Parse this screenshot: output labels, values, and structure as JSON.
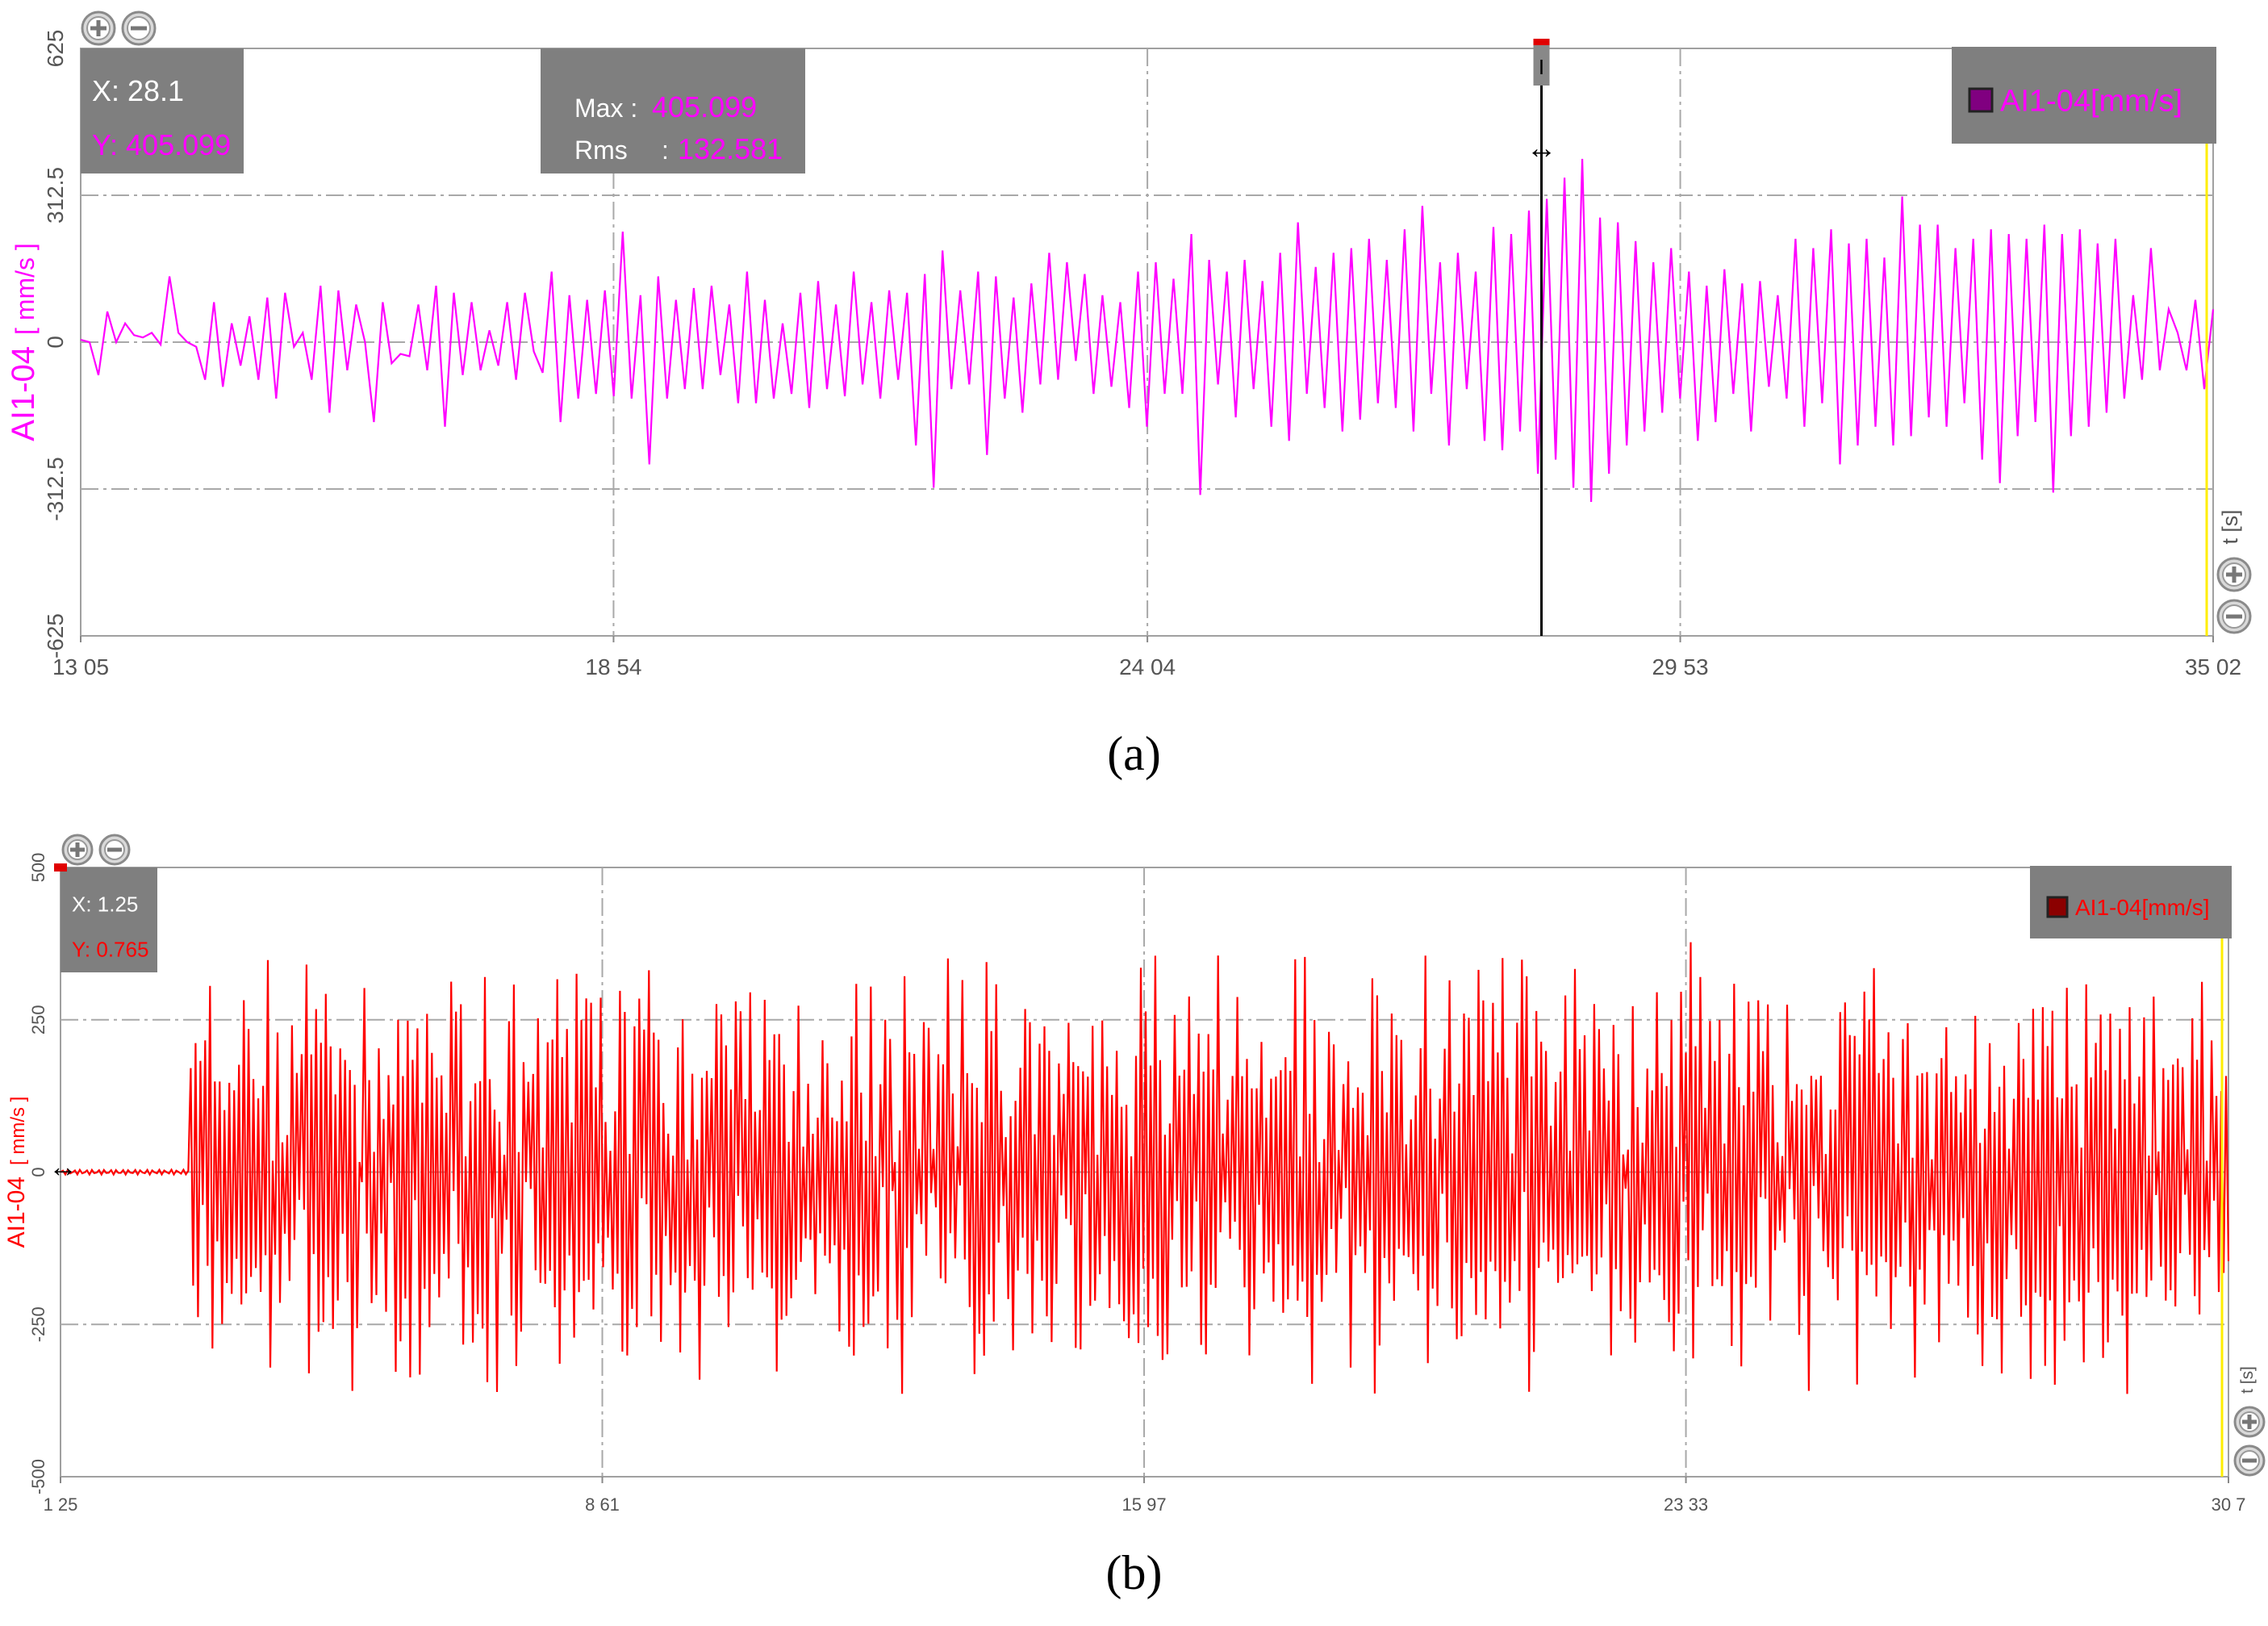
{
  "chart_data": [
    {
      "type": "line",
      "panel_label": "(a)",
      "ylabel": "AI1-04",
      "yunit": "[ mm/s ]",
      "xunit": "t [s]",
      "ylim": [
        -625,
        625
      ],
      "yticks": [
        "625",
        "312.5",
        "0",
        "-312.5",
        "-625"
      ],
      "ytick_values": [
        625,
        312.5,
        0,
        -312.5,
        -625
      ],
      "xlim": [
        13.05,
        35.02
      ],
      "xticks": [
        "13 05",
        "18 54",
        "24 04",
        "29 53",
        "35 02"
      ],
      "xtick_values": [
        13.05,
        18.54,
        24.04,
        29.53,
        35.02
      ],
      "grid": true,
      "legend": {
        "label": "AI1-04[mm/s]",
        "position": "top-right",
        "swatch": "#800080"
      },
      "color": "#ff00ff",
      "cursor_box": {
        "x_label": "X: 28.1",
        "y_label": "Y: 405.099"
      },
      "stats_box": {
        "max_label": "Max",
        "max_value": "405.099",
        "rms_label": "Rms",
        "rms_value": "132.581"
      },
      "cursor_x": 28.1,
      "x_start": 13.05,
      "x_end": 35.02,
      "y": [
        5,
        0,
        -70,
        65,
        0,
        40,
        15,
        10,
        20,
        -5,
        140,
        20,
        0,
        -10,
        -80,
        85,
        -95,
        40,
        -50,
        55,
        -80,
        95,
        -120,
        105,
        -10,
        20,
        -80,
        120,
        -150,
        110,
        -60,
        80,
        0,
        -170,
        85,
        -45,
        -25,
        -30,
        80,
        -60,
        120,
        -180,
        105,
        -70,
        85,
        -60,
        25,
        -50,
        85,
        -80,
        105,
        -20,
        -65,
        150,
        -170,
        100,
        -120,
        90,
        -110,
        110,
        -115,
        235,
        -120,
        100,
        -260,
        140,
        -120,
        90,
        -100,
        115,
        -100,
        120,
        -70,
        80,
        -130,
        150,
        -130,
        90,
        -120,
        40,
        -110,
        105,
        -140,
        130,
        -100,
        80,
        -115,
        150,
        -90,
        85,
        -120,
        110,
        -80,
        105,
        -220,
        145,
        -310,
        195,
        -100,
        110,
        -90,
        150,
        -240,
        140,
        -120,
        95,
        -150,
        125,
        -90,
        190,
        -80,
        170,
        -40,
        145,
        -110,
        100,
        -95,
        85,
        -140,
        150,
        -180,
        170,
        -110,
        135,
        -110,
        230,
        -325,
        175,
        -90,
        150,
        -160,
        175,
        -100,
        130,
        -180,
        190,
        -210,
        255,
        -110,
        160,
        -140,
        190,
        -190,
        200,
        -165,
        220,
        -130,
        175,
        -140,
        240,
        -190,
        290,
        -110,
        170,
        -220,
        190,
        -100,
        150,
        -210,
        245,
        -230,
        230,
        -190,
        280,
        -280,
        305,
        -250,
        350,
        -310,
        390,
        -340,
        265,
        -280,
        255,
        -220,
        215,
        -190,
        170,
        -150,
        200,
        -120,
        150,
        -210,
        120,
        -170,
        155,
        -110,
        125,
        -190,
        130,
        -95,
        100,
        -120,
        220,
        -180,
        200,
        -130,
        240,
        -260,
        210,
        -220,
        220,
        -180,
        180,
        -220,
        310,
        -200,
        250,
        -160,
        250,
        -180,
        200,
        -130,
        220,
        -250,
        240,
        -300,
        230,
        -200,
        220,
        -170,
        250,
        -320,
        230,
        -200,
        240,
        -180,
        210,
        -150,
        220,
        -120,
        100,
        -80,
        200,
        -60,
        70,
        20,
        -60,
        90,
        -100,
        70
      ]
    },
    {
      "type": "line",
      "panel_label": "(b)",
      "ylabel": "AI1-04",
      "yunit": "[ mm/s ]",
      "xunit": "t [s]",
      "ylim": [
        -500,
        500
      ],
      "yticks": [
        "500",
        "250",
        "0",
        "-250",
        "-500"
      ],
      "ytick_values": [
        500,
        250,
        0,
        -250,
        -500
      ],
      "xlim": [
        1.25,
        30.7
      ],
      "xticks": [
        "1 25",
        "8 61",
        "15 97",
        "23 33",
        "30 7"
      ],
      "xtick_values": [
        1.25,
        8.61,
        15.97,
        23.33,
        30.7
      ],
      "grid": true,
      "legend": {
        "label": "AI1-04[mm/s]",
        "position": "top-right",
        "swatch": "#8b0000"
      },
      "color": "#ff0000",
      "cursor_box": {
        "x_label": "X: 1.25",
        "y_label": "Y: 0.765"
      },
      "quiet_until": 3.0,
      "signal_seed": 7,
      "x_start": 1.25,
      "x_end": 30.7
    }
  ]
}
